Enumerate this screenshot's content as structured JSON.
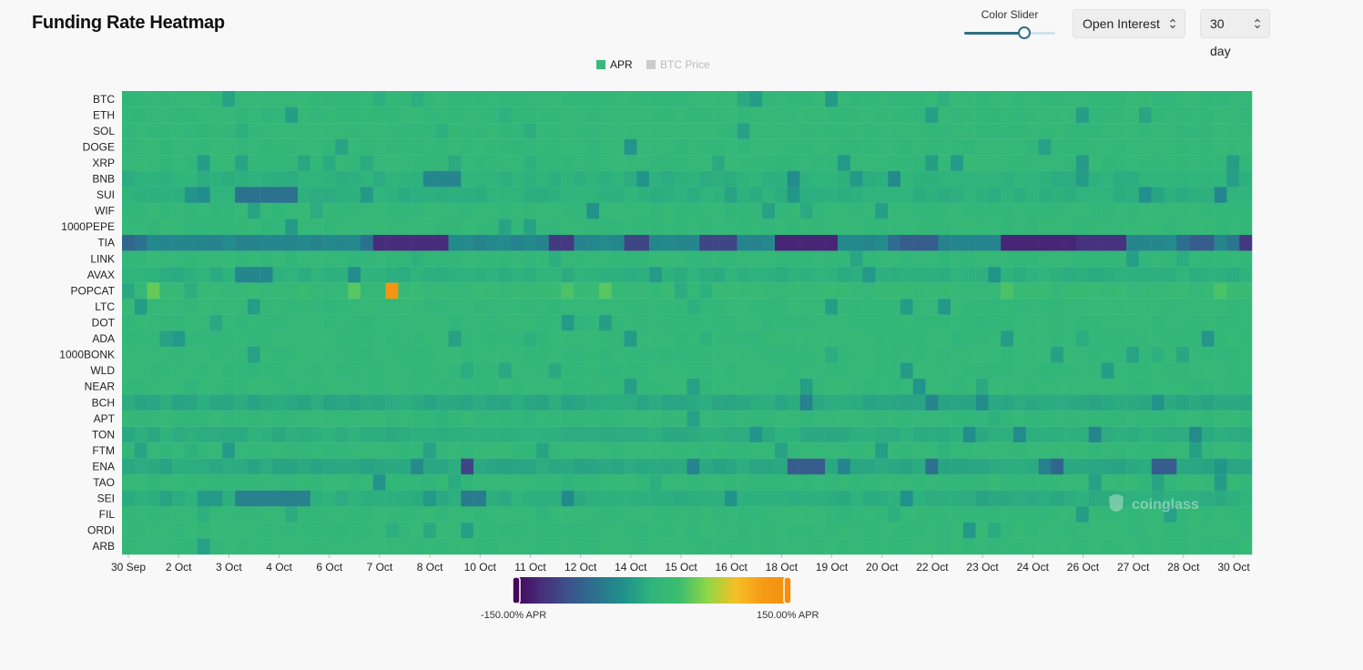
{
  "header": {
    "title": "Funding Rate Heatmap",
    "slider_label": "Color Slider",
    "slider_value": 0.66,
    "sort_select": "Open Interest",
    "range_select": "30 day"
  },
  "legend": {
    "items": [
      {
        "label": "APR",
        "color": "#3cb878",
        "active": true
      },
      {
        "label": "BTC Price",
        "color": "#cccccc",
        "active": false
      }
    ]
  },
  "watermark": "coinglass",
  "colors": {
    "scale": [
      "#440154",
      "#472d7b",
      "#3b528b",
      "#2c728e",
      "#21918c",
      "#2fb47c",
      "#3dbd6f",
      "#8fd744",
      "#f5c026",
      "#f59a14",
      "#f38d0f"
    ],
    "grid": "#ffffff"
  },
  "chart_data": {
    "type": "heatmap",
    "title": "Funding Rate Heatmap",
    "value_unit": "APR %",
    "color_range": [
      -150,
      150
    ],
    "color_range_labels": [
      "-150.00% APR",
      "150.00% APR"
    ],
    "y_categories": [
      "BTC",
      "ETH",
      "SOL",
      "DOGE",
      "XRP",
      "BNB",
      "SUI",
      "WIF",
      "1000PEPE",
      "TIA",
      "LINK",
      "AVAX",
      "POPCAT",
      "LTC",
      "DOT",
      "ADA",
      "1000BONK",
      "WLD",
      "NEAR",
      "BCH",
      "APT",
      "TON",
      "FTM",
      "ENA",
      "TAO",
      "SEI",
      "FIL",
      "ORDI",
      "ARB"
    ],
    "x_tick_labels": [
      "30 Sep",
      "2 Oct",
      "3 Oct",
      "4 Oct",
      "6 Oct",
      "7 Oct",
      "8 Oct",
      "10 Oct",
      "11 Oct",
      "12 Oct",
      "14 Oct",
      "15 Oct",
      "16 Oct",
      "18 Oct",
      "19 Oct",
      "20 Oct",
      "22 Oct",
      "23 Oct",
      "24 Oct",
      "26 Oct",
      "27 Oct",
      "28 Oct",
      "30 Oct"
    ],
    "x_count": 90,
    "baseline_apr": 10,
    "row_defaults": {
      "TIA": -40,
      "ENA": -10,
      "BCH": -10,
      "TON": -5,
      "SEI": -5,
      "SUI": -3,
      "AVAX": -3,
      "BNB": -2,
      "POPCAT": 15
    },
    "highlights": [
      {
        "row": "TIA",
        "from": 0,
        "to": 0,
        "value": -70
      },
      {
        "row": "TIA",
        "from": 1,
        "to": 1,
        "value": -60
      },
      {
        "row": "TIA",
        "from": 20,
        "to": 25,
        "value": -120
      },
      {
        "row": "TIA",
        "from": 34,
        "to": 35,
        "value": -110
      },
      {
        "row": "TIA",
        "from": 40,
        "to": 41,
        "value": -100
      },
      {
        "row": "TIA",
        "from": 46,
        "to": 48,
        "value": -100
      },
      {
        "row": "TIA",
        "from": 52,
        "to": 56,
        "value": -125
      },
      {
        "row": "TIA",
        "from": 62,
        "to": 64,
        "value": -80
      },
      {
        "row": "TIA",
        "from": 70,
        "to": 75,
        "value": -125
      },
      {
        "row": "TIA",
        "from": 76,
        "to": 79,
        "value": -115
      },
      {
        "row": "TIA",
        "from": 85,
        "to": 86,
        "value": -80
      },
      {
        "row": "TIA",
        "from": 89,
        "to": 89,
        "value": -110
      },
      {
        "row": "POPCAT",
        "from": 2,
        "to": 2,
        "value": 45
      },
      {
        "row": "POPCAT",
        "from": 18,
        "to": 18,
        "value": 40
      },
      {
        "row": "POPCAT",
        "from": 21,
        "to": 21,
        "value": 130
      },
      {
        "row": "POPCAT",
        "from": 35,
        "to": 35,
        "value": 35
      },
      {
        "row": "POPCAT",
        "from": 38,
        "to": 38,
        "value": 40
      },
      {
        "row": "POPCAT",
        "from": 70,
        "to": 70,
        "value": 35
      },
      {
        "row": "POPCAT",
        "from": 87,
        "to": 87,
        "value": 35
      },
      {
        "row": "SUI",
        "from": 9,
        "to": 13,
        "value": -60
      },
      {
        "row": "SUI",
        "from": 6,
        "to": 6,
        "value": -35
      },
      {
        "row": "BNB",
        "from": 24,
        "to": 26,
        "value": -40
      },
      {
        "row": "AVAX",
        "from": 9,
        "to": 11,
        "value": -40
      },
      {
        "row": "ENA",
        "from": 27,
        "to": 27,
        "value": -100
      },
      {
        "row": "ENA",
        "from": 53,
        "to": 55,
        "value": -80
      },
      {
        "row": "ENA",
        "from": 64,
        "to": 64,
        "value": -60
      },
      {
        "row": "ENA",
        "from": 74,
        "to": 74,
        "value": -70
      },
      {
        "row": "ENA",
        "from": 82,
        "to": 83,
        "value": -80
      },
      {
        "row": "BCH",
        "from": 54,
        "to": 54,
        "value": -45
      },
      {
        "row": "SEI",
        "from": 9,
        "to": 14,
        "value": -45
      },
      {
        "row": "SEI",
        "from": 27,
        "to": 28,
        "value": -50
      }
    ]
  }
}
